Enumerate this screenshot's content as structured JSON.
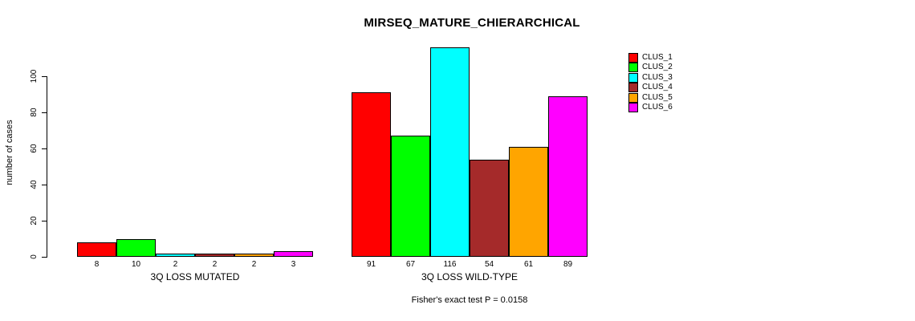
{
  "chart_data": {
    "type": "bar",
    "title": "MIRSEQ_MATURE_CHIERARCHICAL",
    "ylabel": "number of cases",
    "xlabel": "",
    "ylim": [
      0,
      116
    ],
    "yticks": [
      0,
      20,
      40,
      60,
      80,
      100
    ],
    "grid": false,
    "legend_position": "right",
    "categories": [
      "3Q LOSS MUTATED",
      "3Q LOSS WILD-TYPE"
    ],
    "series": [
      {
        "name": "CLUS_1",
        "color": "#ff0000",
        "values": [
          8,
          91
        ]
      },
      {
        "name": "CLUS_2",
        "color": "#00ff00",
        "values": [
          10,
          67
        ]
      },
      {
        "name": "CLUS_3",
        "color": "#00ffff",
        "values": [
          2,
          116
        ]
      },
      {
        "name": "CLUS_4",
        "color": "#a52a2a",
        "values": [
          2,
          54
        ]
      },
      {
        "name": "CLUS_5",
        "color": "#ffa500",
        "values": [
          2,
          61
        ]
      },
      {
        "name": "CLUS_6",
        "color": "#ff00ff",
        "values": [
          3,
          89
        ]
      }
    ],
    "bar_value_labels": [
      [
        "8",
        "10",
        "2",
        "2",
        "2",
        "3"
      ],
      [
        "91",
        "67",
        "116",
        "54",
        "61",
        "89"
      ]
    ],
    "annotation": "Fisher's exact test P = 0.0158",
    "bar_border_color": "#000000",
    "text_color": "#000000",
    "background_color": "#ffffff"
  }
}
